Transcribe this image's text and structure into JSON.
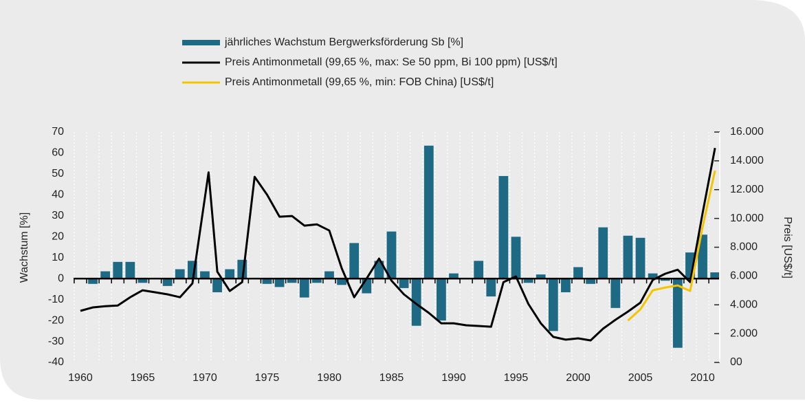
{
  "chart_data": {
    "type": "bar-line",
    "y_label": "Wachstum [%]",
    "y2_label": "Preis [US$/t]",
    "xlim": [
      1959.45,
      2011.6
    ],
    "xticks": [
      1960,
      1965,
      1970,
      1975,
      1980,
      1985,
      1990,
      1995,
      2000,
      2005,
      2010
    ],
    "ylim": [
      -40,
      70
    ],
    "yticks": [
      -40,
      -30,
      -20,
      -10,
      0,
      10,
      20,
      30,
      40,
      50,
      60,
      70
    ],
    "y2lim": [
      0,
      16000
    ],
    "y2ticks": [
      {
        "value": 0,
        "label": "00"
      },
      {
        "value": 2000,
        "label": "2.000"
      },
      {
        "value": 4000,
        "label": "4.000"
      },
      {
        "value": 6000,
        "label": "6.000"
      },
      {
        "value": 8000,
        "label": "8.000"
      },
      {
        "value": 10000,
        "label": "10.000"
      },
      {
        "value": 12000,
        "label": "12.000"
      },
      {
        "value": 14000,
        "label": "14.000"
      },
      {
        "value": 16000,
        "label": "16.000"
      }
    ],
    "series": [
      {
        "name": "jährliches Wachstum Bergwerksförderung Sb [%]",
        "type": "bar",
        "color": "#1e6a85",
        "x": [
          1961,
          1962,
          1963,
          1964,
          1965,
          1966,
          1967,
          1968,
          1969,
          1970,
          1971,
          1972,
          1973,
          1974,
          1975,
          1976,
          1977,
          1978,
          1979,
          1980,
          1981,
          1982,
          1983,
          1984,
          1985,
          1986,
          1987,
          1988,
          1989,
          1990,
          1991,
          1992,
          1993,
          1994,
          1995,
          1996,
          1997,
          1998,
          1999,
          2000,
          2001,
          2002,
          2003,
          2004,
          2005,
          2006,
          2007,
          2008,
          2009,
          2010,
          2011
        ],
        "values": [
          -2.5,
          3.5,
          8,
          8,
          -2,
          0,
          -3.5,
          4.5,
          8.5,
          3.5,
          -6.5,
          4.5,
          9,
          0,
          -2.5,
          -4,
          -2,
          -9,
          -2,
          3.5,
          -3,
          17,
          -7,
          8.5,
          22.5,
          -4.5,
          -22.5,
          63.5,
          -20,
          2.5,
          0,
          8.5,
          -8.5,
          49,
          20,
          -2,
          2,
          -25,
          -6.5,
          5.5,
          -2.5,
          24.5,
          -14,
          20.5,
          19.5,
          2.5,
          -1,
          -33,
          12.5,
          21,
          3
        ]
      },
      {
        "name": "Preis Antimonmetall (99,65 %, max: Se 50 ppm, Bi 100 ppm) [US$/t]",
        "type": "line",
        "axis": "y2",
        "color": "#000000",
        "x": [
          1960,
          1961,
          1962,
          1963,
          1964,
          1965,
          1966,
          1967,
          1968,
          1969,
          1970.3,
          1971,
          1972,
          1973,
          1974,
          1975,
          1976,
          1977,
          1978,
          1979,
          1980,
          1981,
          1982,
          1983,
          1984,
          1985,
          1986,
          1987,
          1988,
          1989,
          1990,
          1991,
          1992,
          1993,
          1994,
          1995,
          1996,
          1997,
          1998,
          1999,
          2000,
          2001,
          2002,
          2003,
          2004,
          2005,
          2006,
          2007,
          2008,
          2009,
          2010,
          2011
        ],
        "values": [
          3580,
          3820,
          3900,
          3950,
          4530,
          5010,
          4870,
          4730,
          4530,
          5490,
          13200,
          6300,
          4960,
          5580,
          12890,
          11650,
          10120,
          10170,
          9500,
          9590,
          9160,
          6540,
          4530,
          5820,
          7210,
          5680,
          4730,
          4060,
          3440,
          2720,
          2720,
          2580,
          2530,
          2480,
          5580,
          5970,
          4060,
          2720,
          1770,
          1580,
          1670,
          1530,
          2340,
          2960,
          3530,
          4150,
          5730,
          6160,
          6440,
          5580,
          10360,
          14890
        ]
      },
      {
        "name": "Preis Antimonmetall (99,65 %, min: FOB China) [US$/t]",
        "type": "line",
        "axis": "y2",
        "color": "#f5c400",
        "x": [
          2004,
          2005,
          2006,
          2007,
          2008,
          2009,
          2010,
          2011
        ],
        "values": [
          2910,
          3680,
          5010,
          5200,
          5350,
          4960,
          9400,
          13320
        ]
      }
    ]
  }
}
